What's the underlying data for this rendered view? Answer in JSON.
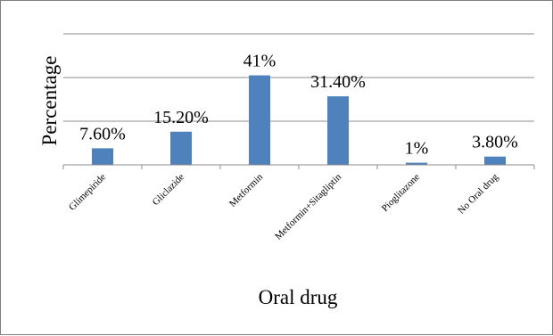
{
  "chart_data": {
    "type": "bar",
    "title": "",
    "xlabel": "Oral drug",
    "ylabel": "Percentage",
    "categories": [
      "Glimepiride",
      "Gliclazide",
      "Metformin",
      "Metformin+Sitagliptin",
      "Pioglitazone",
      "No Oral drug"
    ],
    "values": [
      7.6,
      15.2,
      41,
      31.4,
      1,
      3.8
    ],
    "data_labels": [
      "7.60%",
      "15.20%",
      "41%",
      "31.40%",
      "1%",
      "3.80%"
    ],
    "ylim": [
      0,
      60
    ],
    "gridlines": true,
    "legend": "none",
    "bar_color": "#4f81bd"
  }
}
